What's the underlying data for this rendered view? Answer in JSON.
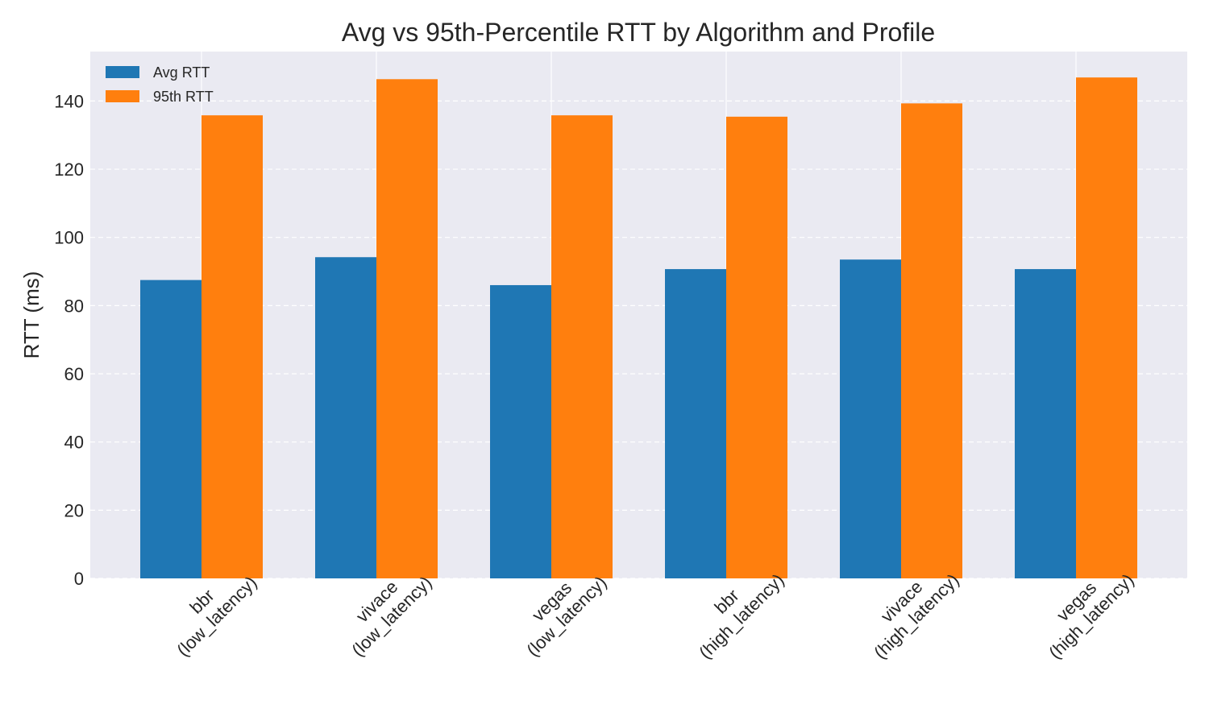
{
  "chart_data": {
    "type": "bar",
    "title": "Avg vs 95th-Percentile RTT by Algorithm and Profile",
    "xlabel": "",
    "ylabel": "RTT (ms)",
    "categories": [
      [
        "bbr",
        "(low_latency)"
      ],
      [
        "vivace",
        "(low_latency)"
      ],
      [
        "vegas",
        "(low_latency)"
      ],
      [
        "bbr",
        "(high_latency)"
      ],
      [
        "vivace",
        "(high_latency)"
      ],
      [
        "vegas",
        "(high_latency)"
      ]
    ],
    "series": [
      {
        "name": "Avg RTT",
        "color": "#1f77b4",
        "values": [
          87.5,
          94.2,
          86.0,
          90.7,
          93.5,
          90.7
        ]
      },
      {
        "name": "95th RTT",
        "color": "#ff7f0e",
        "values": [
          135.8,
          146.4,
          135.8,
          135.4,
          139.3,
          146.9
        ]
      }
    ],
    "ylim": [
      0,
      154.5
    ],
    "yticks": [
      0,
      20,
      40,
      60,
      80,
      100,
      120,
      140
    ],
    "grid": true,
    "legend_position": "top-left",
    "plot_background": "#eaeaf2"
  }
}
